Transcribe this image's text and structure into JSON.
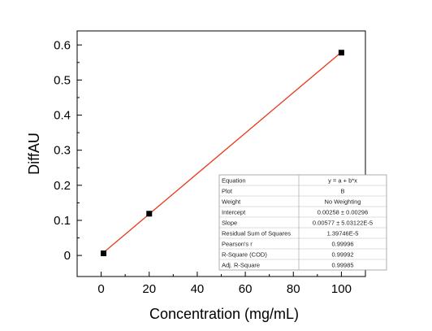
{
  "chart_data": {
    "type": "scatter",
    "xlabel": "Concentration (mg/mL)",
    "ylabel": "DiffAU",
    "xlim": [
      -10,
      110
    ],
    "ylim": [
      -0.06,
      0.64
    ],
    "xticks": [
      0,
      20,
      40,
      60,
      80,
      100
    ],
    "yticks": [
      0,
      0.1,
      0.2,
      0.3,
      0.4,
      0.5,
      0.6
    ],
    "xtick_labels": [
      "0",
      "20",
      "40",
      "60",
      "80",
      "100"
    ],
    "ytick_labels": [
      "0",
      "0.1",
      "0.2",
      "0.3",
      "0.4",
      "0.5",
      "0.6"
    ],
    "grid": false,
    "legend": "none",
    "series": [
      {
        "kind": "points",
        "marker": "square",
        "color": "#000000",
        "x": [
          1,
          20,
          100
        ],
        "y": [
          0.006,
          0.119,
          0.578
        ]
      },
      {
        "kind": "fit-line",
        "color": "#e8391d",
        "intercept": 0.00258,
        "slope": 0.00577,
        "x_range": [
          1,
          100
        ]
      }
    ],
    "fit_table": {
      "position": "bottom-right",
      "rows": [
        [
          "Equation",
          "y = a + b*x"
        ],
        [
          "Plot",
          "B"
        ],
        [
          "Weight",
          "No Weighting"
        ],
        [
          "Intercept",
          "0.00258 ± 0.00296"
        ],
        [
          "Slope",
          "0.00577 ± 5.03122E-5"
        ],
        [
          "Residual Sum of Squares",
          "1.39746E-5"
        ],
        [
          "Pearson's r",
          "0.99996"
        ],
        [
          "R-Square (COD)",
          "0.99992"
        ],
        [
          "Adj. R-Square",
          "0.99985"
        ]
      ]
    }
  }
}
